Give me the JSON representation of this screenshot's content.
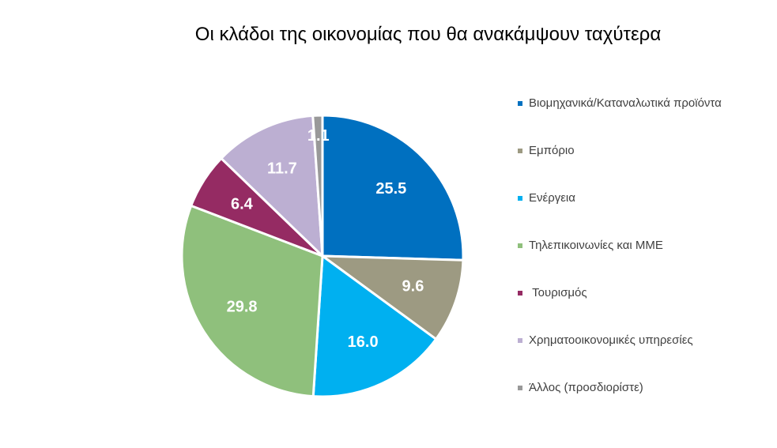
{
  "chart_data": {
    "type": "pie",
    "title": "Οι κλάδοι της οικονομίας που θα ανακάμψουν ταχύτερα",
    "slices": [
      {
        "label": "Βιομηχανικά/Καταναλωτικά προϊόντα",
        "value": 25.5,
        "display": "25.5",
        "color": "#0070C0"
      },
      {
        "label": "Εμπόριο",
        "value": 9.6,
        "display": "9.6",
        "color": "#9D9A82"
      },
      {
        "label": "Ενέργεια",
        "value": 16.0,
        "display": "16.0",
        "color": "#00B0F0"
      },
      {
        "label": "Τηλεπικοινωνίες και ΜΜΕ",
        "value": 29.8,
        "display": "29.8",
        "color": "#8FC07C"
      },
      {
        "label": " Τουρισμός",
        "value": 6.4,
        "display": "6.4",
        "color": "#952B63"
      },
      {
        "label": "Χρηματοοικονομικές υπηρεσίες",
        "value": 11.7,
        "display": "11.7",
        "color": "#BCAFD2"
      },
      {
        "label": "Άλλος (προσδιορίστε)",
        "value": 1.1,
        "display": "1.1",
        "color": "#999999"
      }
    ],
    "legend_position": "right",
    "label_color": "#ffffff"
  }
}
